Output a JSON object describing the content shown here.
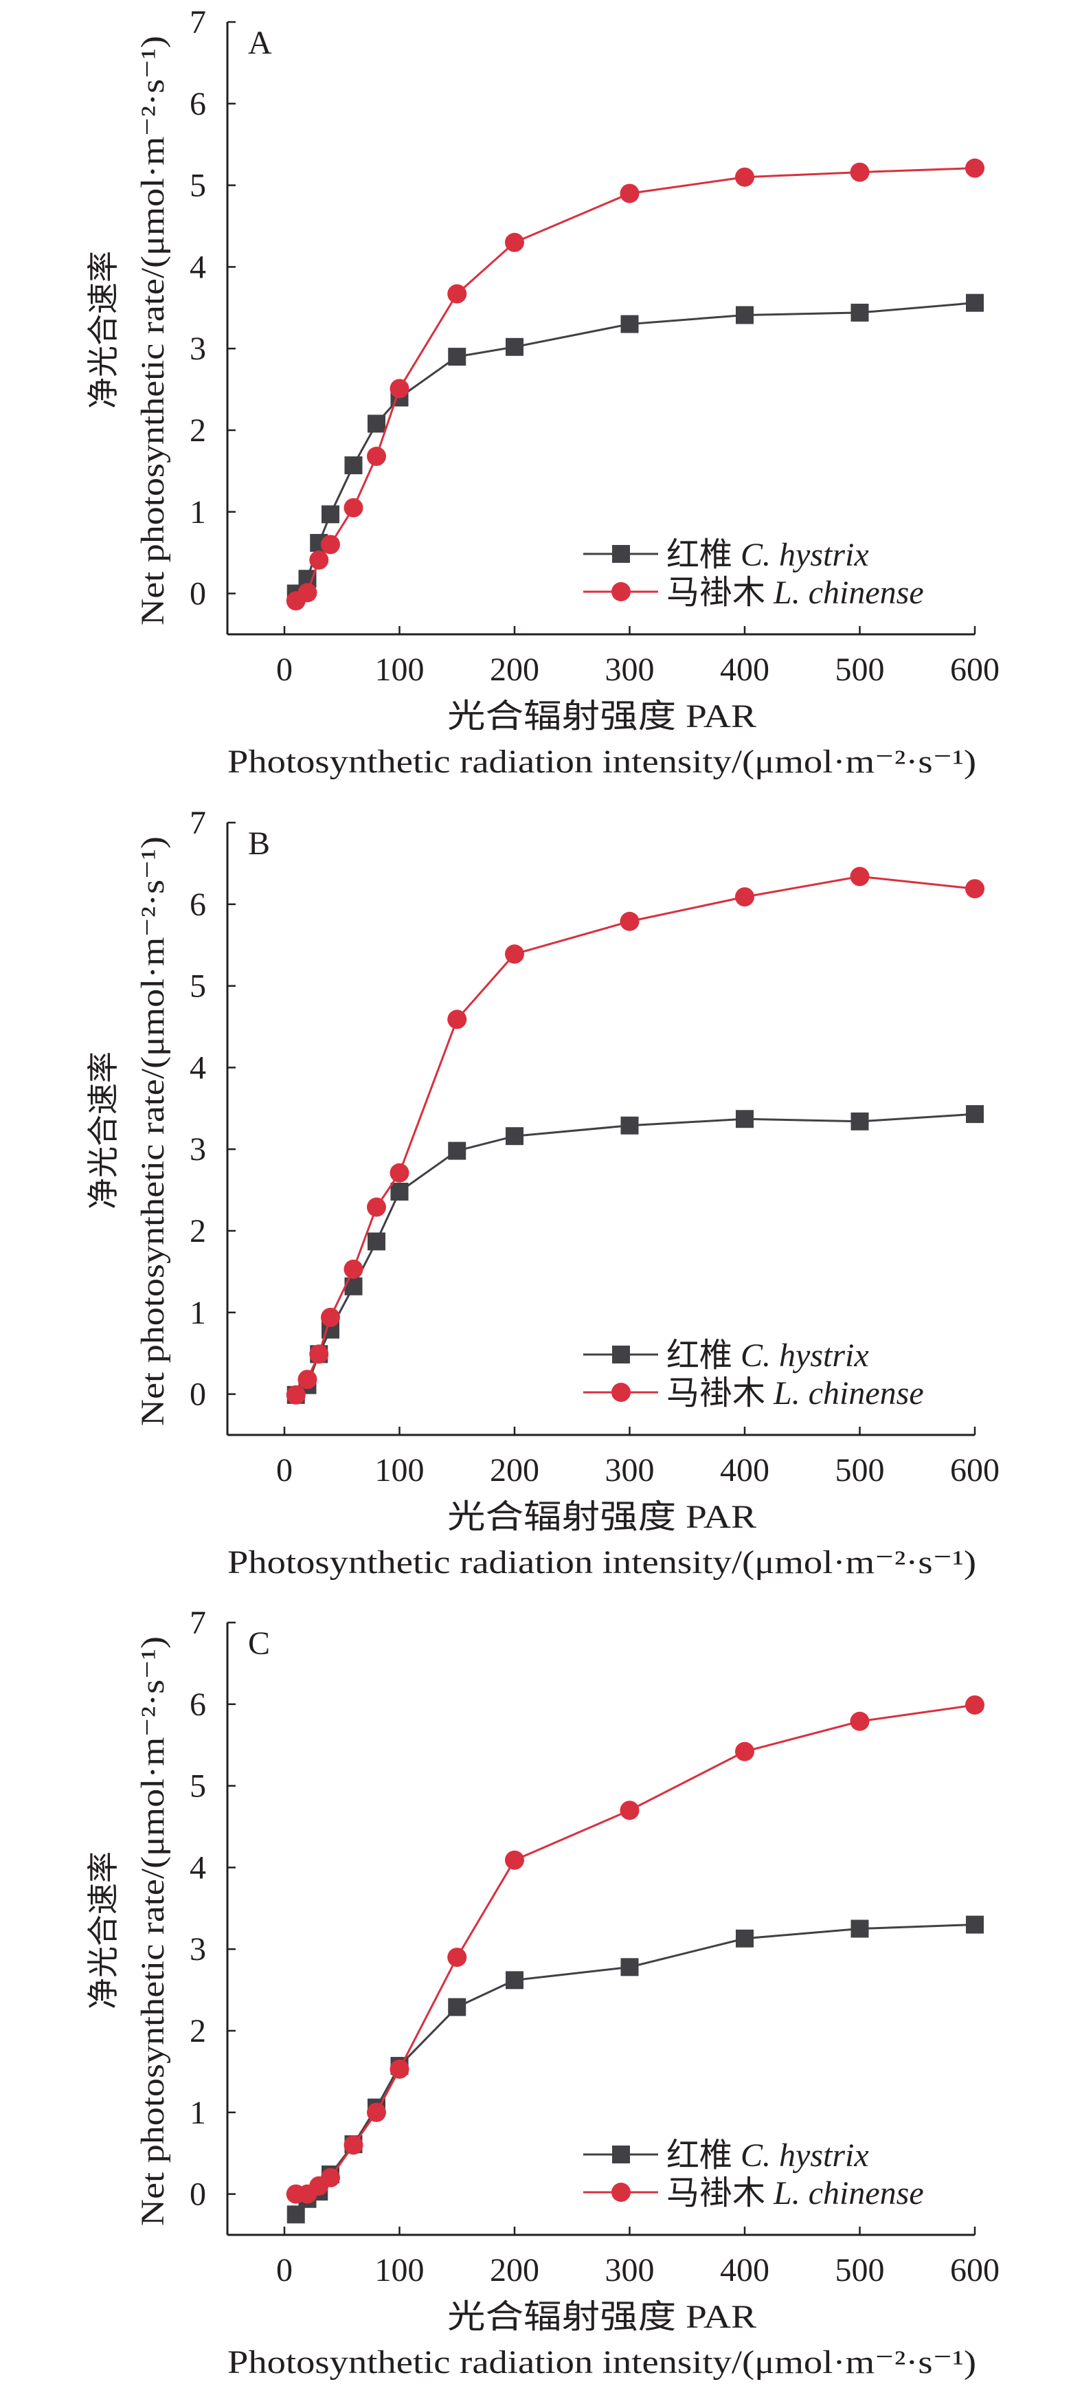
{
  "chart_data": [
    {
      "type": "line",
      "panel_label": "A",
      "ylabel_cn": "净光合速率",
      "ylabel_en": "Net photosynthetic rate/(μmol·m⁻²·s⁻¹)",
      "xlabel_cn": "光合辐射强度 PAR",
      "xlabel_en": "Photosynthetic radiation intensity/(μmol·m⁻²·s⁻¹)",
      "xlim": [
        -50,
        600
      ],
      "ylim": [
        -0.5,
        7
      ],
      "xticks": [
        "0",
        "100",
        "200",
        "300",
        "400",
        "500",
        "600"
      ],
      "yticks": [
        "0",
        "1",
        "2",
        "3",
        "4",
        "5",
        "6",
        "7"
      ],
      "legend": "bottom-right",
      "x": [
        10,
        20,
        30,
        40,
        60,
        80,
        100,
        150,
        200,
        300,
        400,
        500,
        600
      ],
      "series": [
        {
          "name_cn": "红椎",
          "name_sci": "C. hystrix",
          "marker": "square",
          "color": "#414045",
          "values": [
            0.0,
            0.18,
            0.62,
            0.97,
            1.57,
            2.08,
            2.4,
            2.9,
            3.02,
            3.3,
            3.41,
            3.44,
            3.56
          ]
        },
        {
          "name_cn": "马褂木",
          "name_sci": "L. chinense",
          "marker": "circle",
          "color": "#d9303f",
          "values": [
            -0.09,
            0.01,
            0.41,
            0.6,
            1.05,
            1.68,
            2.51,
            3.67,
            4.3,
            4.9,
            5.1,
            5.16,
            5.21
          ]
        }
      ]
    },
    {
      "type": "line",
      "panel_label": "B",
      "ylabel_cn": "净光合速率",
      "ylabel_en": "Net photosynthetic rate/(μmol·m⁻²·s⁻¹)",
      "xlabel_cn": "光合辐射强度 PAR",
      "xlabel_en": "Photosynthetic radiation intensity/(μmol·m⁻²·s⁻¹)",
      "xlim": [
        -50,
        600
      ],
      "ylim": [
        -0.5,
        7
      ],
      "xticks": [
        "0",
        "100",
        "200",
        "300",
        "400",
        "500",
        "600"
      ],
      "yticks": [
        "0",
        "1",
        "2",
        "3",
        "4",
        "5",
        "6",
        "7"
      ],
      "legend": "bottom-right",
      "x": [
        10,
        20,
        30,
        40,
        60,
        80,
        100,
        150,
        200,
        300,
        400,
        500,
        600
      ],
      "series": [
        {
          "name_cn": "红椎",
          "name_sci": "C. hystrix",
          "marker": "square",
          "color": "#414045",
          "values": [
            -0.01,
            0.11,
            0.49,
            0.79,
            1.32,
            1.87,
            2.48,
            2.98,
            3.16,
            3.29,
            3.37,
            3.34,
            3.43
          ]
        },
        {
          "name_cn": "马褂木",
          "name_sci": "L. chinense",
          "marker": "circle",
          "color": "#d9303f",
          "values": [
            -0.01,
            0.18,
            0.49,
            0.94,
            1.53,
            2.29,
            2.71,
            4.59,
            5.39,
            5.79,
            6.09,
            6.34,
            6.19
          ]
        }
      ]
    },
    {
      "type": "line",
      "panel_label": "C",
      "ylabel_cn": "净光合速率",
      "ylabel_en": "Net photosynthetic rate/(μmol·m⁻²·s⁻¹)",
      "xlabel_cn": "光合辐射强度 PAR",
      "xlabel_en": "Photosynthetic radiation intensity/(μmol·m⁻²·s⁻¹)",
      "xlim": [
        -50,
        600
      ],
      "ylim": [
        -0.5,
        7
      ],
      "xticks": [
        "0",
        "100",
        "200",
        "300",
        "400",
        "500",
        "600"
      ],
      "yticks": [
        "0",
        "1",
        "2",
        "3",
        "4",
        "5",
        "6",
        "7"
      ],
      "legend": "bottom-right",
      "x": [
        10,
        20,
        30,
        40,
        60,
        80,
        100,
        150,
        200,
        300,
        400,
        500,
        600
      ],
      "series": [
        {
          "name_cn": "红椎",
          "name_sci": "C. hystrix",
          "marker": "square",
          "color": "#414045",
          "values": [
            -0.25,
            -0.06,
            0.03,
            0.24,
            0.61,
            1.06,
            1.57,
            2.29,
            2.62,
            2.78,
            3.13,
            3.25,
            3.3
          ]
        },
        {
          "name_cn": "马褂木",
          "name_sci": "L. chinense",
          "marker": "circle",
          "color": "#d9303f",
          "values": [
            0.0,
            0.0,
            0.1,
            0.2,
            0.6,
            1.0,
            1.53,
            2.9,
            4.09,
            4.7,
            5.42,
            5.79,
            5.99
          ]
        }
      ]
    }
  ]
}
